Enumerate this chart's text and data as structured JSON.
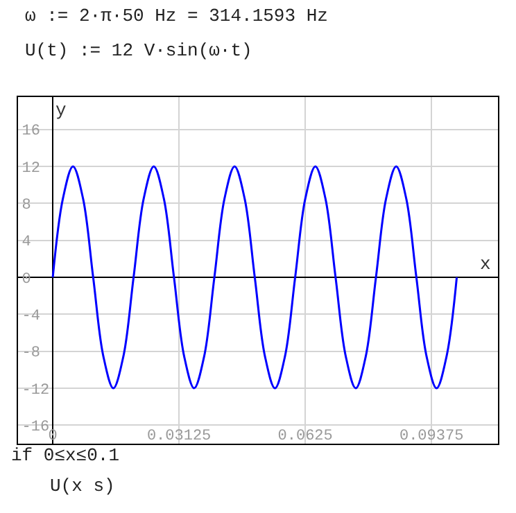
{
  "chart_data": {
    "type": "line",
    "xlabel": "x",
    "ylabel": "y",
    "annotations": [
      "ω := 2·π·50 Hz = 314.1593 Hz",
      "U(t) := 12 V·sin(ω·t)",
      "if 0≤x≤0.1",
      "U(x s)"
    ],
    "x": [
      0,
      0.0025,
      0.005,
      0.0075,
      0.01,
      0.0125,
      0.015,
      0.0175,
      0.02,
      0.0225,
      0.025,
      0.0275,
      0.03,
      0.0325,
      0.035,
      0.0375,
      0.04,
      0.0425,
      0.045,
      0.0475,
      0.05,
      0.0525,
      0.055,
      0.0575,
      0.06,
      0.0625,
      0.065,
      0.0675,
      0.07,
      0.0725,
      0.075,
      0.0775,
      0.08,
      0.0825,
      0.085,
      0.0875,
      0.09,
      0.0925,
      0.095,
      0.0975,
      0.1
    ],
    "series": [
      {
        "color": "#0000ff",
        "values": [
          0,
          8.5,
          12,
          8.5,
          0,
          -8.5,
          -12,
          -8.5,
          0,
          8.5,
          12,
          8.5,
          0,
          -8.5,
          -12,
          -8.5,
          0,
          8.5,
          12,
          8.5,
          0,
          -8.5,
          -12,
          -8.5,
          0,
          8.5,
          12,
          8.5,
          0,
          -8.5,
          -12,
          -8.5,
          0,
          8.5,
          12,
          8.5,
          0,
          -8.5,
          -12,
          -8.5,
          0
        ]
      }
    ],
    "xlim": [
      -0.0086,
      0.1102
    ],
    "ylim": [
      -18,
      19.5
    ],
    "xticks": [
      0,
      0.03125,
      0.0625,
      0.09375
    ],
    "yticks": [
      -16,
      -12,
      -8,
      -4,
      0,
      4,
      8,
      12,
      16
    ],
    "grid": true,
    "marker": "none",
    "line_style": "solid"
  }
}
